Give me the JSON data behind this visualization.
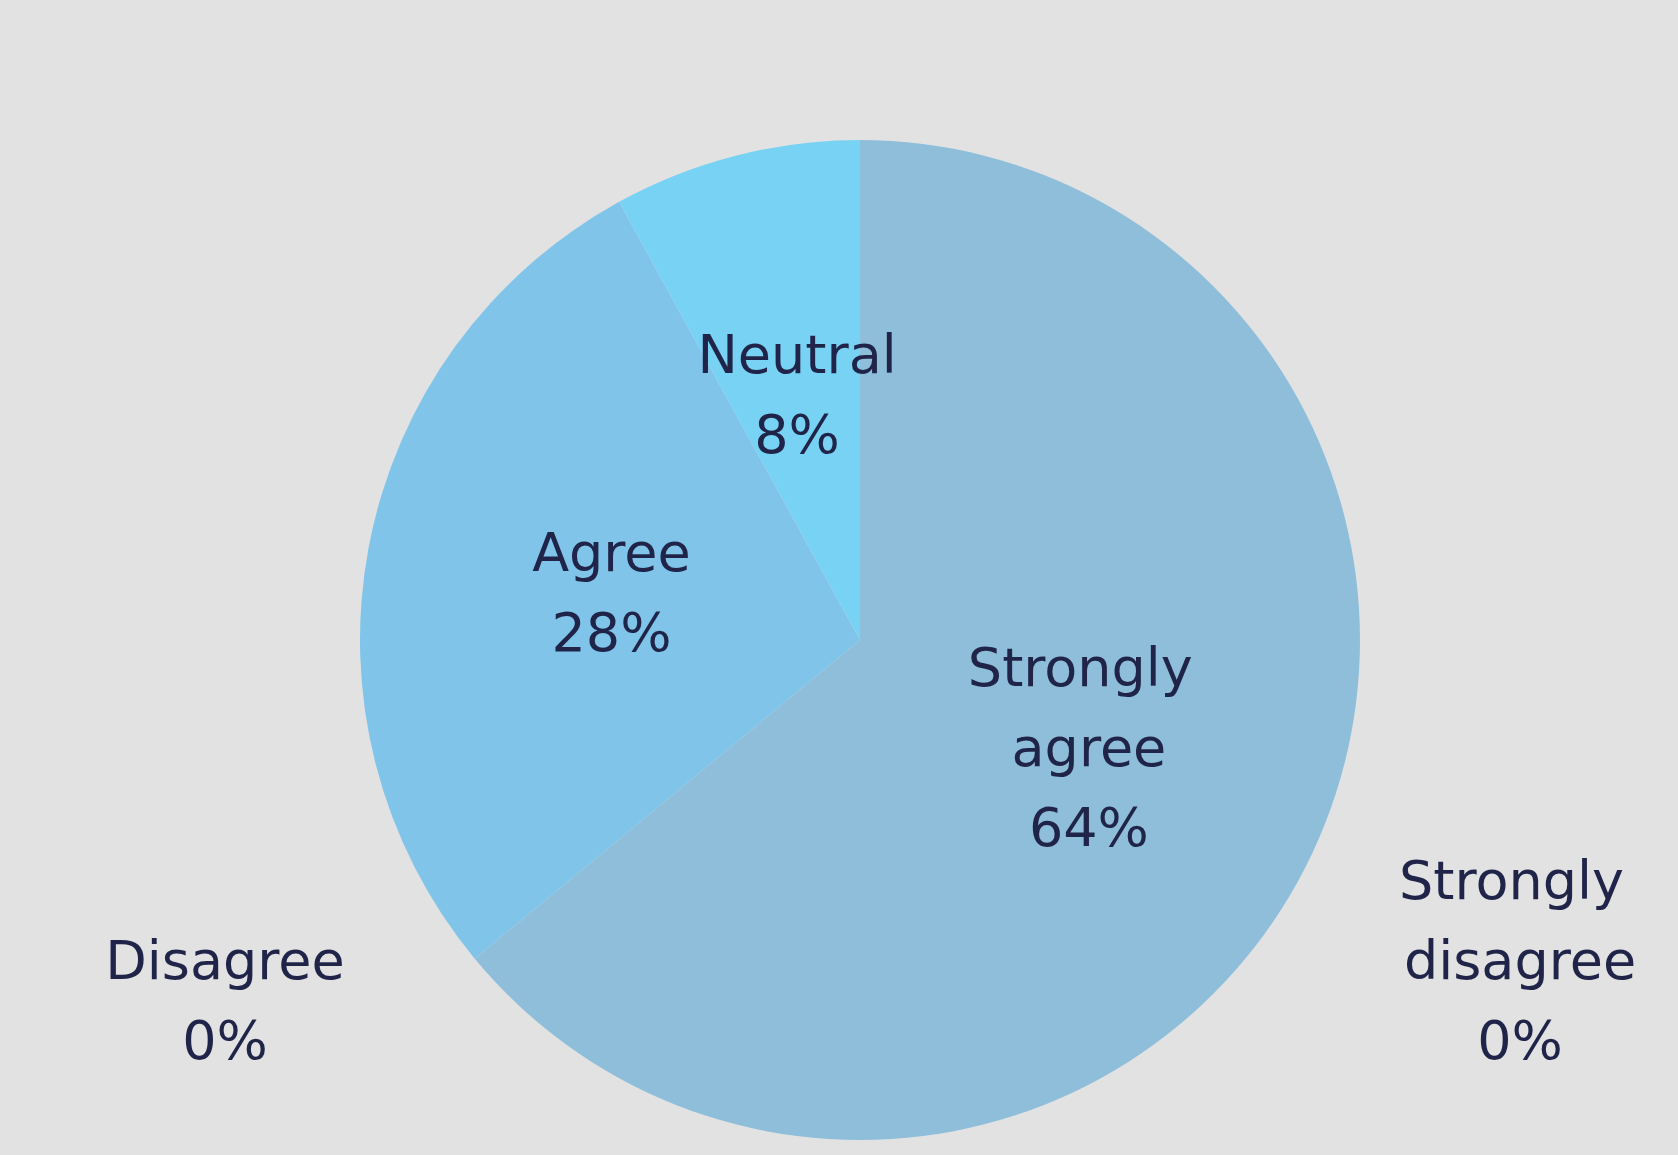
{
  "chart_data": {
    "type": "pie",
    "categories": [
      "Strongly agree",
      "Strongly disagree",
      "Disagree",
      "Agree",
      "Neutral"
    ],
    "values": [
      64,
      0,
      0,
      28,
      8
    ],
    "colors": [
      "#8fbedb",
      "#9fc4dc",
      "#4aa6cf",
      "#80c4ea",
      "#78d2f4"
    ],
    "value_labels": [
      "64%",
      "0%",
      "0%",
      "28%",
      "8%"
    ],
    "legend": false
  }
}
